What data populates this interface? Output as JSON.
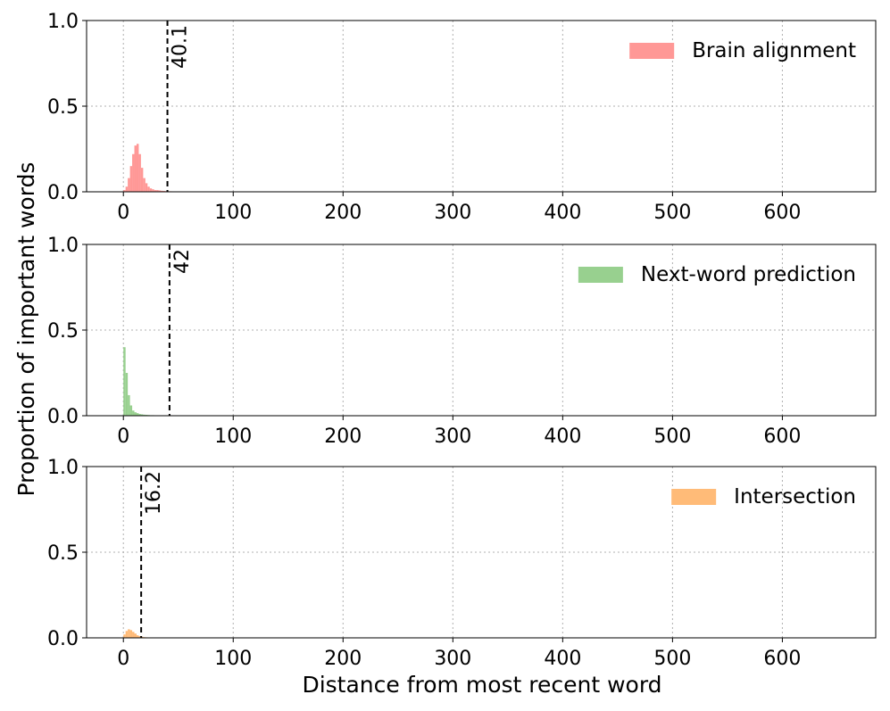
{
  "chart_data": [
    {
      "type": "histogram",
      "grid": true,
      "legend": "upper right",
      "xlim": [
        -33.5,
        685
      ],
      "ylim": [
        0,
        1
      ],
      "xticks": [
        0,
        100,
        200,
        300,
        400,
        500,
        600
      ],
      "yticks": [
        {
          "value": 0,
          "label": "0.0"
        },
        0.5,
        {
          "value": 1,
          "label": "1.0"
        }
      ],
      "bins": [
        0,
        2,
        4,
        6,
        8,
        10,
        12,
        14,
        16,
        18,
        20,
        22,
        24,
        26,
        28,
        30,
        32,
        34,
        36,
        38,
        40,
        42,
        44,
        46,
        48,
        50,
        52,
        54,
        56,
        58,
        60
      ],
      "series": [
        {
          "name": "Brain alignment",
          "color": "#ff9896",
          "values": [
            0.01,
            0.03,
            0.08,
            0.15,
            0.22,
            0.27,
            0.28,
            0.22,
            0.14,
            0.08,
            0.05,
            0.03,
            0.02,
            0.015,
            0.01,
            0.01,
            0.008,
            0.006,
            0.005,
            0.004,
            0.003,
            0.003,
            0.002,
            0.002,
            0.002,
            0.001,
            0.001,
            0.001,
            0.001,
            0.001
          ]
        }
      ],
      "vline": 40.1
    },
    {
      "type": "histogram",
      "grid": true,
      "legend": "upper right",
      "y_label": "Proportion of important words",
      "xlim": [
        -33.5,
        685
      ],
      "ylim": [
        0,
        1
      ],
      "xticks": [
        0,
        100,
        200,
        300,
        400,
        500,
        600
      ],
      "yticks": [
        {
          "value": 0,
          "label": "0.0"
        },
        0.5,
        {
          "value": 1,
          "label": "1.0"
        }
      ],
      "bins": [
        0,
        2,
        4,
        6,
        8,
        10,
        12,
        14,
        16,
        18,
        20,
        22,
        24,
        26,
        28,
        30,
        32,
        34,
        36,
        38,
        40,
        42,
        44,
        46,
        48,
        50,
        52,
        54,
        56,
        58,
        60
      ],
      "series": [
        {
          "name": "Next-word prediction",
          "color": "#98d08f",
          "values": [
            0.4,
            0.25,
            0.12,
            0.06,
            0.03,
            0.02,
            0.015,
            0.01,
            0.008,
            0.006,
            0.005,
            0.004,
            0.003,
            0.003,
            0.002,
            0.002,
            0.002,
            0.002,
            0.001,
            0.001,
            0.001,
            0.001,
            0.001,
            0.001,
            0.001,
            0.001,
            0.001,
            0.001,
            0.001,
            0.001
          ]
        }
      ],
      "vline": 42.0
    },
    {
      "type": "histogram",
      "grid": true,
      "legend": "upper right",
      "x_label": "Distance from most recent word",
      "xlim": [
        -33.5,
        685
      ],
      "ylim": [
        0,
        1
      ],
      "xticks": [
        0,
        100,
        200,
        300,
        400,
        500,
        600
      ],
      "yticks": [
        {
          "value": 0,
          "label": "0.0"
        },
        0.5,
        {
          "value": 1,
          "label": "1.0"
        }
      ],
      "bins": [
        0,
        2,
        4,
        6,
        8,
        10,
        12,
        14,
        16,
        18,
        20,
        22,
        24,
        26,
        28,
        30,
        32,
        34,
        36,
        38,
        40,
        42,
        44,
        46,
        48,
        50,
        52,
        54,
        56,
        58,
        60
      ],
      "series": [
        {
          "name": "Intersection",
          "color": "#ffbb78",
          "values": [
            0.02,
            0.04,
            0.05,
            0.045,
            0.035,
            0.025,
            0.015,
            0.01,
            0.006,
            0.004,
            0.003,
            0.002,
            0.001,
            0.001,
            0.001,
            0,
            0,
            0,
            0,
            0,
            0,
            0,
            0,
            0,
            0,
            0,
            0,
            0,
            0,
            0
          ]
        }
      ],
      "vline": 16.2
    }
  ]
}
